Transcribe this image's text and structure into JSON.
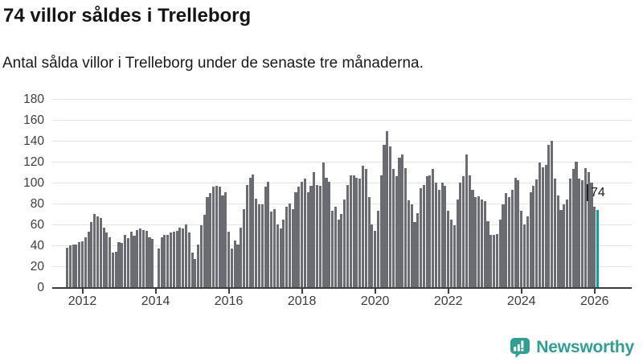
{
  "header": {
    "title": "74 villor såldes i Trelleborg",
    "subtitle": "Antal sålda villor i Trelleborg under de senaste tre månaderna."
  },
  "chart_data": {
    "type": "bar",
    "title": "74 villor såldes i Trelleborg",
    "xlabel": "",
    "ylabel": "",
    "ylim": [
      0,
      180
    ],
    "y_ticks": [
      0,
      20,
      40,
      60,
      80,
      100,
      120,
      140,
      160,
      180
    ],
    "x_tick_labels": [
      "2012",
      "2014",
      "2016",
      "2018",
      "2020",
      "2022",
      "2024",
      "2026"
    ],
    "grid": true,
    "bar_color": "#6b6b74",
    "highlight_color": "#00a2a2",
    "grid_color": "#e4e4e4",
    "axis_color": "#3d3d3d",
    "frequency": "monthly",
    "values": [
      38,
      40,
      41,
      41,
      43,
      44,
      48,
      53,
      62,
      70,
      68,
      66,
      57,
      52,
      48,
      33,
      34,
      43,
      42,
      50,
      47,
      53,
      49,
      55,
      56,
      55,
      54,
      48,
      46,
      null,
      37,
      48,
      50,
      50,
      52,
      53,
      54,
      57,
      56,
      60,
      52,
      33,
      27,
      41,
      59,
      69,
      86,
      90,
      96,
      97,
      96,
      88,
      91,
      53,
      37,
      45,
      41,
      57,
      75,
      98,
      105,
      108,
      85,
      79,
      79,
      96,
      101,
      72,
      75,
      60,
      56,
      65,
      77,
      80,
      75,
      91,
      96,
      101,
      104,
      91,
      97,
      110,
      98,
      97,
      119,
      105,
      101,
      73,
      77,
      65,
      70,
      84,
      98,
      107,
      107,
      105,
      104,
      116,
      113,
      86,
      60,
      54,
      73,
      107,
      136,
      149,
      135,
      113,
      106,
      124,
      127,
      114,
      83,
      79,
      62,
      71,
      95,
      98,
      106,
      107,
      113,
      100,
      93,
      100,
      97,
      73,
      65,
      59,
      84,
      100,
      106,
      127,
      107,
      93,
      86,
      87,
      84,
      82,
      63,
      50,
      50,
      51,
      65,
      79,
      90,
      86,
      93,
      105,
      102,
      73,
      60,
      68,
      91,
      97,
      103,
      119,
      115,
      117,
      136,
      140,
      104,
      88,
      74,
      79,
      84,
      104,
      113,
      120,
      104,
      102,
      114,
      110,
      100,
      77,
      74
    ],
    "highlight": {
      "index": 174,
      "value": 74,
      "label": "74"
    },
    "legend": null
  },
  "footer": {
    "brand": "Newsworthy",
    "brand_color": "#2f9e93",
    "logo_icon": "bar-chart-speech-bubble-icon"
  }
}
